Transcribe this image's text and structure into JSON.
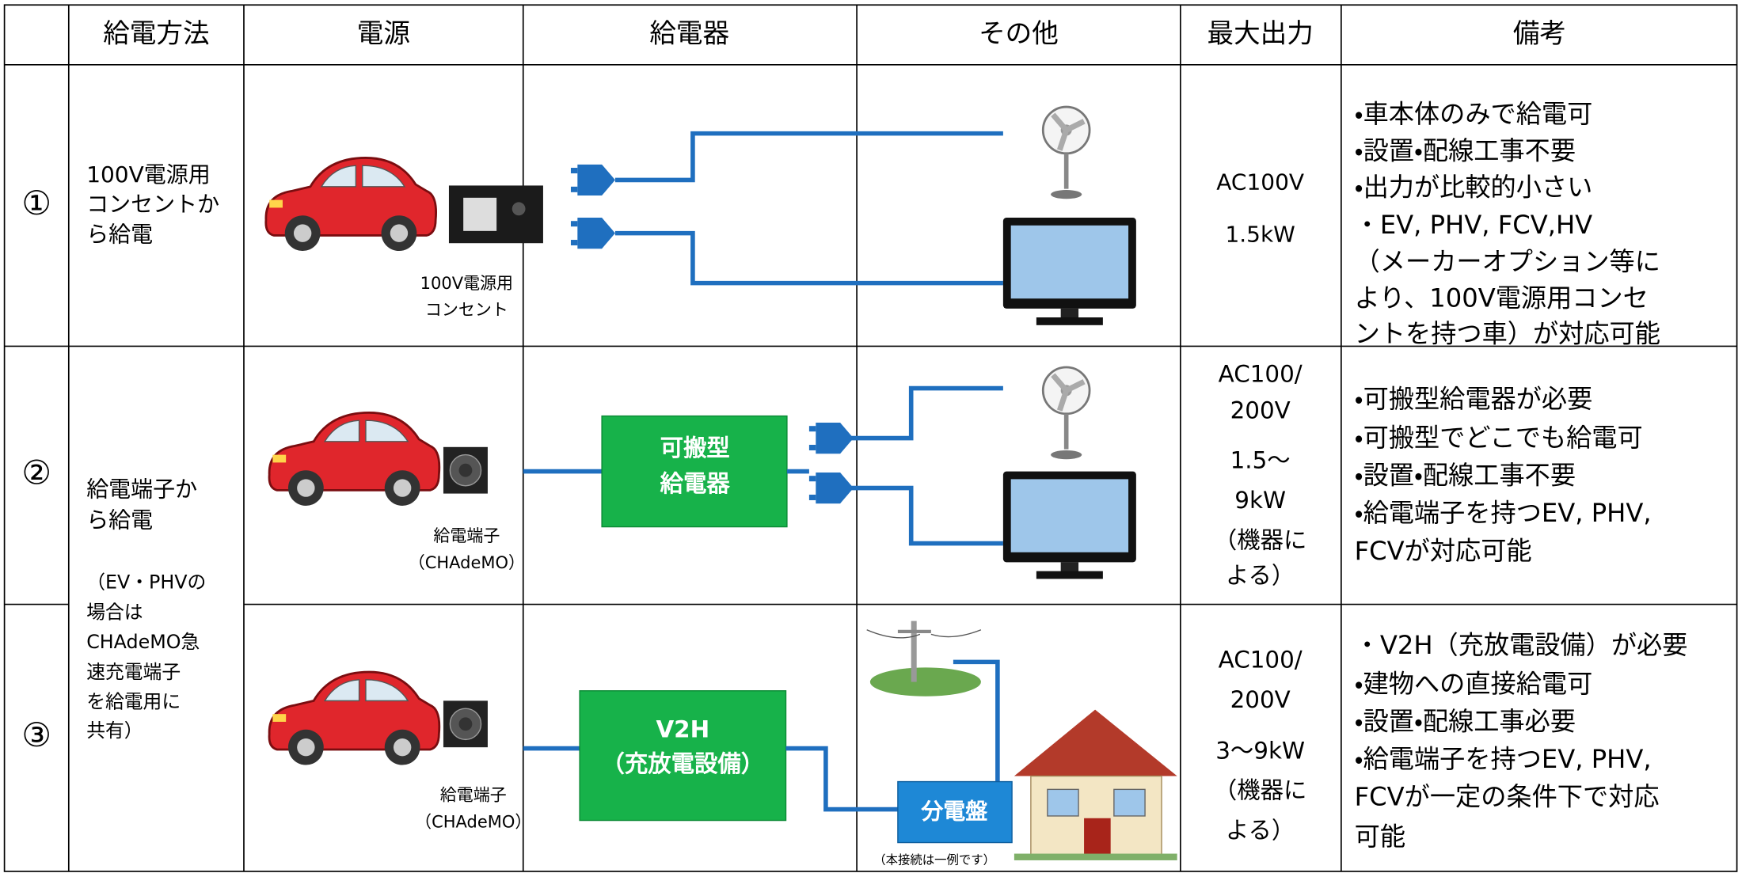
{
  "table": {
    "header": [
      "給電方法",
      "電源",
      "給電器",
      "その他",
      "最大出力",
      "備考"
    ],
    "rows": [
      {
        "number": "①",
        "method": [
          "100V電源用",
          "コンセントか",
          "ら給電"
        ],
        "source_caption": [
          "100V電源用",
          "コンセント"
        ],
        "max_output": [
          "AC100V",
          "1.5kW"
        ],
        "notes": [
          "・車本体のみで給電可",
          "・設置・配線工事不要",
          "・出力が比較的小さい",
          "・EV, PHV, FCV,HV",
          "（メーカーオプション等に",
          "より、100V電源用コンセ",
          "ントを持つ車）が対応可能"
        ]
      },
      {
        "number": "②",
        "method": [
          "給電端子か",
          "ら給電"
        ],
        "method_note": [
          "（EV・PHVの",
          "場合は",
          "CHAdeMO急",
          "速充電端子",
          "を給電用に",
          "共有）"
        ],
        "source_caption": [
          "給電端子",
          "（CHAdeMO）"
        ],
        "feeder": [
          "可搬型",
          "給電器"
        ],
        "max_output": [
          "AC100/",
          "200V",
          "1.5～",
          "9kW",
          "（機器に",
          "よる）"
        ],
        "notes": [
          "・可搬型給電器が必要",
          "・可搬型でどこでも給電可",
          "・設置・配線工事不要",
          "・給電端子を持つEV, PHV,",
          "FCVが対応可能"
        ]
      },
      {
        "number": "③",
        "source_caption": [
          "給電端子",
          "（CHAdeMO）"
        ],
        "feeder": [
          "V2H",
          "（充放電設備）"
        ],
        "other": {
          "panel": "分電盤",
          "note": "（本接続は一例です）"
        },
        "max_output": [
          "AC100/",
          "200V",
          "3～9kW",
          "（機器に",
          "よる）"
        ],
        "notes": [
          "・V2H（充放電設備）が必要",
          "・建物への直接給電可",
          "・設置・配線工事必要",
          "・給電端子を持つEV, PHV,",
          "FCVが一定の条件下で対応",
          "可能"
        ]
      }
    ]
  }
}
